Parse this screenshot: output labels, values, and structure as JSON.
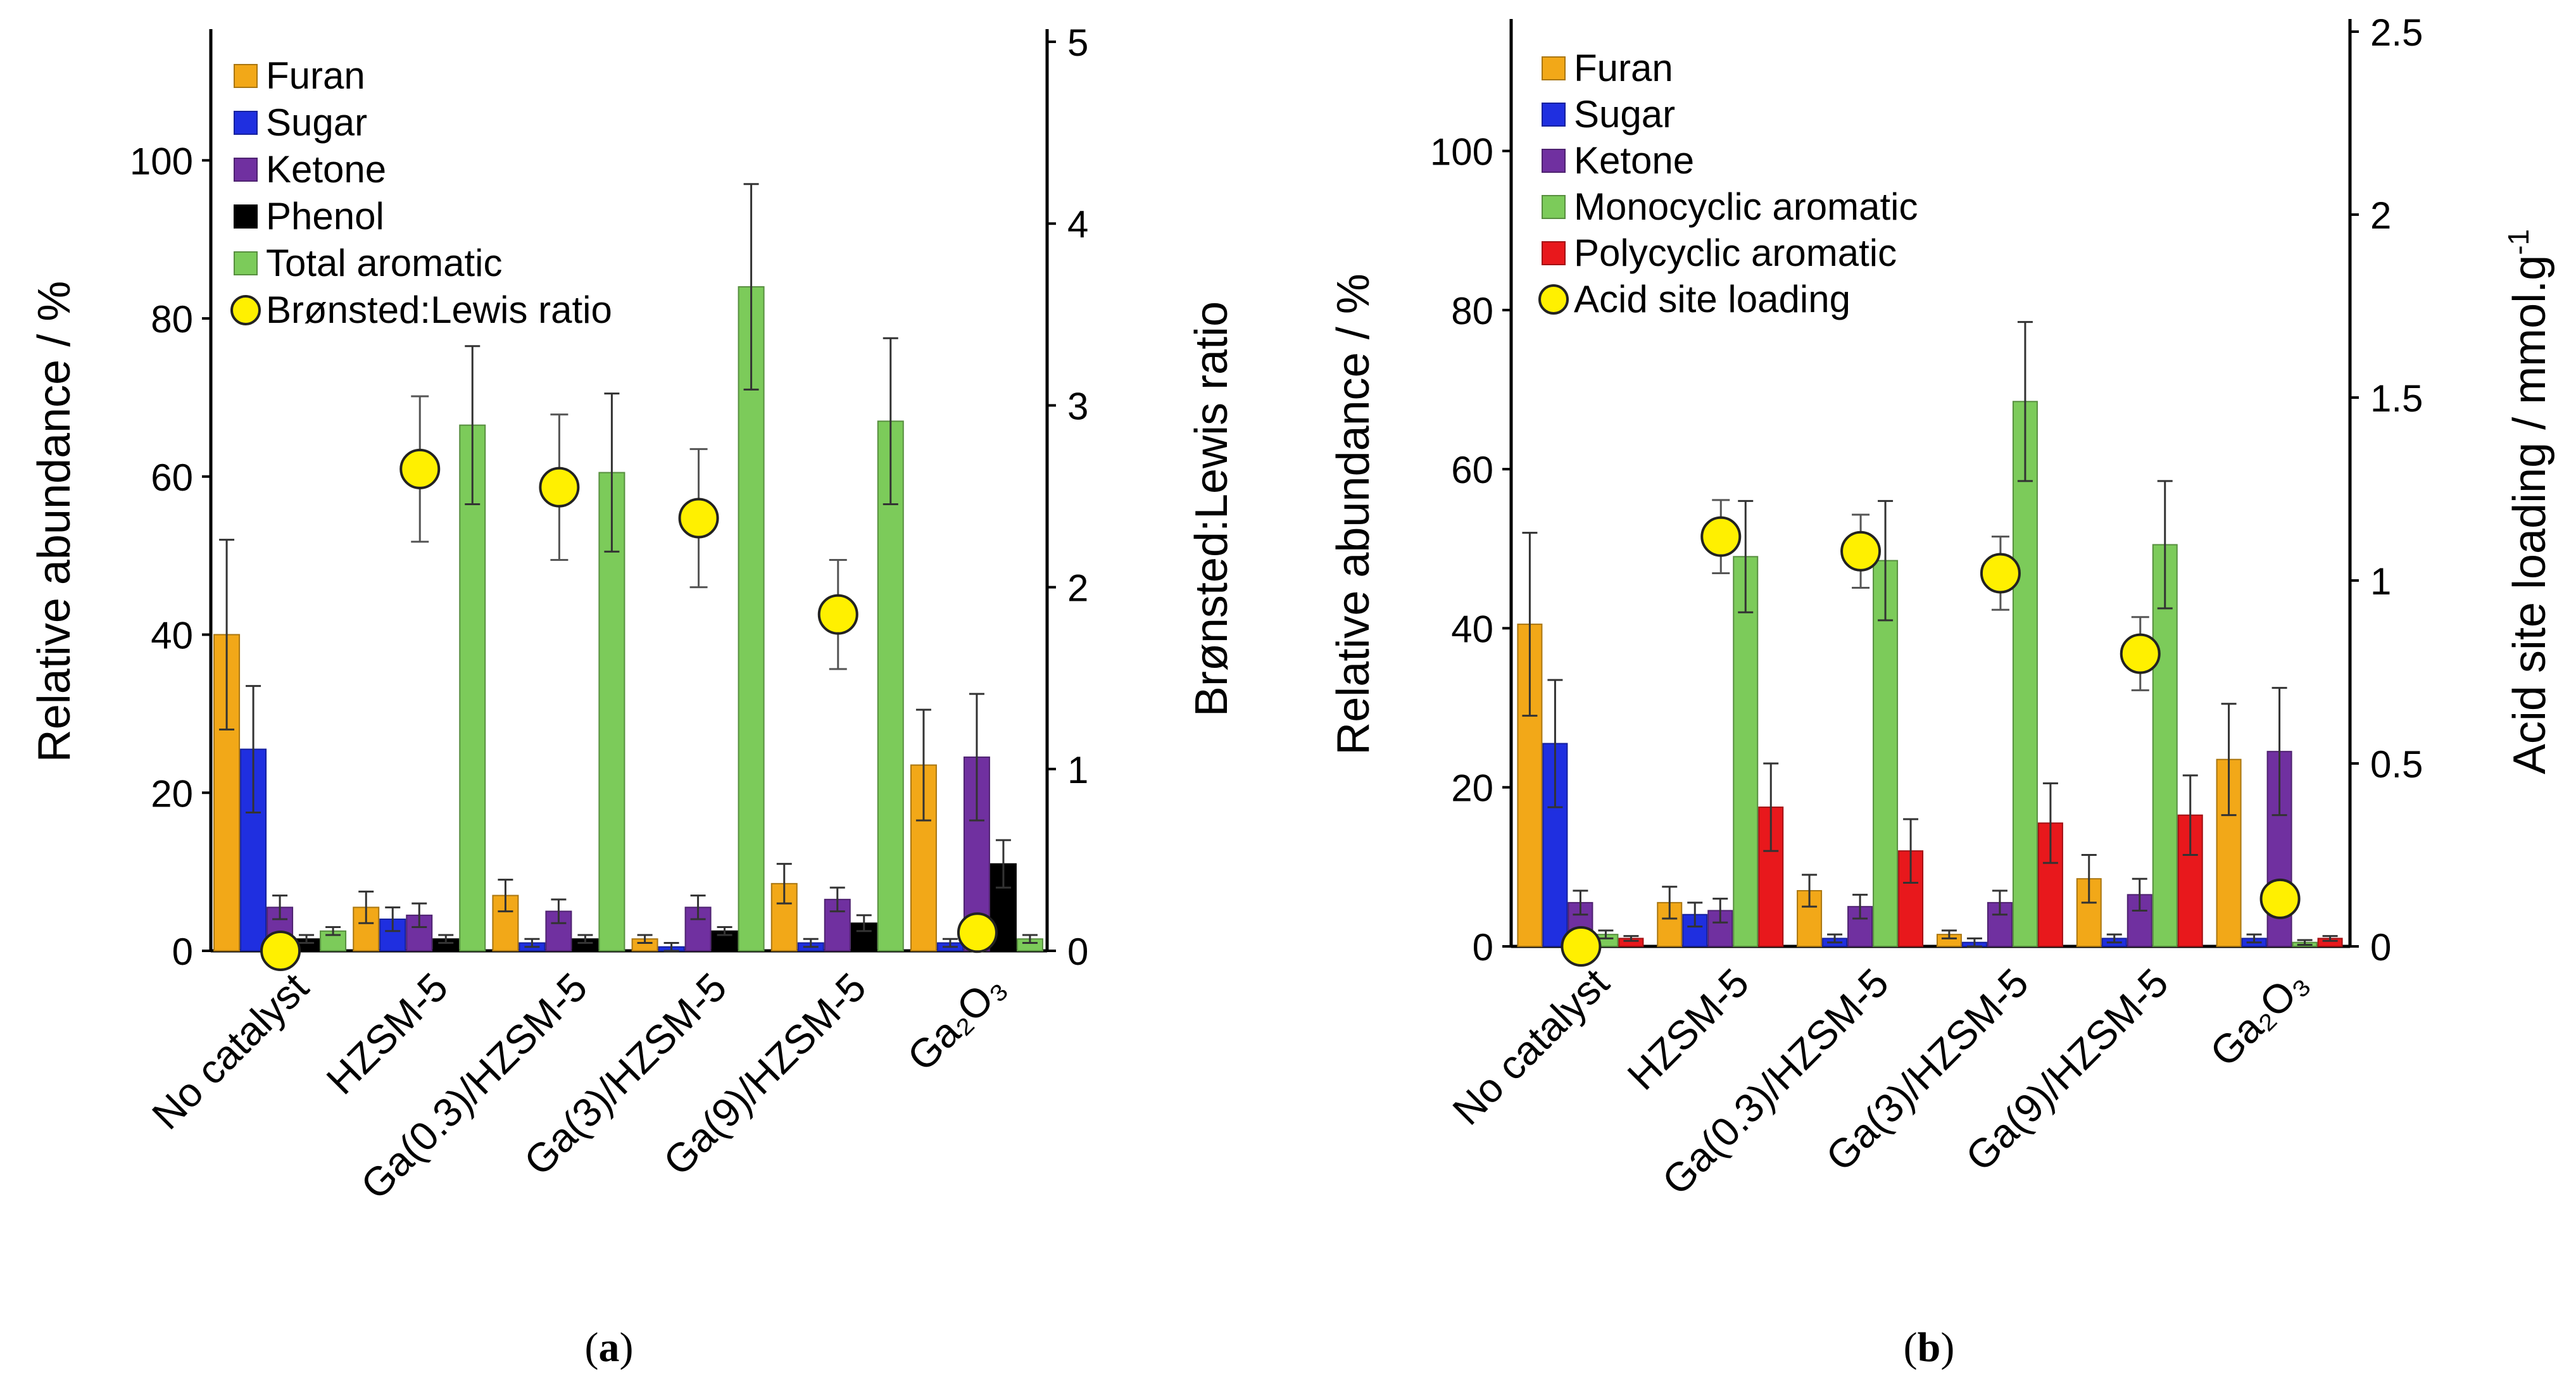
{
  "categories_display": [
    "No catalyst",
    "HZSM-5",
    "Ga(0.3)/HZSM-5",
    "Ga(3)/HZSM-5",
    "Ga(9)/HZSM-5",
    "Ga₂O₃"
  ],
  "panel_labels": {
    "a_open": "(",
    "a_letter": "a",
    "a_close": ")",
    "b_open": "(",
    "b_letter": "b",
    "b_close": ")"
  },
  "colors": {
    "furan": "#F2A818",
    "sugar": "#1F2FE0",
    "ketone": "#7030A0",
    "phenol": "#000000",
    "aromatic": "#7CCB5A",
    "polycyclic": "#E8181C",
    "marker": "#FFF000"
  },
  "chart_data": [
    {
      "type": "bar",
      "panel": "a",
      "categories": [
        "No catalyst",
        "HZSM-5",
        "Ga(0.3)/HZSM-5",
        "Ga(3)/HZSM-5",
        "Ga(9)/HZSM-5",
        "Ga2O3"
      ],
      "ylabel": "Relative abundance  / %",
      "ylim": [
        0,
        115
      ],
      "yticks": [
        0,
        20,
        40,
        60,
        80,
        100
      ],
      "y2label": "Brønsted:Lewis ratio",
      "y2lim": [
        0,
        5
      ],
      "y2ticks": [
        0,
        1,
        2,
        3,
        4,
        5
      ],
      "legend_position": "top-left",
      "series": [
        {
          "name": "Furan",
          "color": "#F2A818",
          "values": [
            40,
            5.5,
            7,
            1.5,
            8.5,
            23.5
          ],
          "errors": [
            12,
            2,
            2,
            0.5,
            2.5,
            7
          ]
        },
        {
          "name": "Sugar",
          "color": "#1F2FE0",
          "values": [
            25.5,
            4,
            1,
            0.5,
            1,
            1
          ],
          "errors": [
            8,
            1.5,
            0.5,
            0.5,
            0.5,
            0.5
          ]
        },
        {
          "name": "Ketone",
          "color": "#7030A0",
          "values": [
            5.5,
            4.5,
            5,
            5.5,
            6.5,
            24.5
          ],
          "errors": [
            1.5,
            1.5,
            1.5,
            1.5,
            1.5,
            8
          ]
        },
        {
          "name": "Phenol",
          "color": "#000000",
          "values": [
            1.5,
            1.5,
            1.5,
            2.5,
            3.5,
            11
          ],
          "errors": [
            0.5,
            0.5,
            0.5,
            0.5,
            1,
            3
          ]
        },
        {
          "name": "Total aromatic",
          "color": "#7CCB5A",
          "values": [
            2.5,
            66.5,
            60.5,
            84,
            67,
            1.5
          ],
          "errors": [
            0.5,
            10,
            10,
            13,
            10.5,
            0.5
          ]
        }
      ],
      "secondary_series": {
        "name": "Brønsted:Lewis ratio",
        "type": "scatter",
        "color": "#FFF000",
        "values": [
          0,
          2.65,
          2.55,
          2.38,
          1.85,
          0.1
        ],
        "errors": [
          0,
          0.4,
          0.4,
          0.38,
          0.3,
          0
        ]
      }
    },
    {
      "type": "bar",
      "panel": "b",
      "categories": [
        "No catalyst",
        "HZSM-5",
        "Ga(0.3)/HZSM-5",
        "Ga(3)/HZSM-5",
        "Ga(9)/HZSM-5",
        "Ga2O3"
      ],
      "ylabel": "Relative abundance  / %",
      "ylim": [
        0,
        115
      ],
      "yticks": [
        0,
        20,
        40,
        60,
        80,
        100
      ],
      "y2label": "Acid site loading / mmol.g",
      "y2label_superscript": "-1",
      "y2lim": [
        0,
        2.5
      ],
      "y2ticks": [
        0,
        0.5,
        1,
        1.5,
        2,
        2.5
      ],
      "y2ticklabels": [
        "0",
        "0.5",
        "1",
        "1.5",
        "2",
        "2.5"
      ],
      "legend_position": "top-left",
      "series": [
        {
          "name": "Furan",
          "color": "#F2A818",
          "values": [
            40.5,
            5.5,
            7,
            1.5,
            8.5,
            23.5
          ],
          "errors": [
            11.5,
            2,
            2,
            0.5,
            3,
            7
          ]
        },
        {
          "name": "Sugar",
          "color": "#1F2FE0",
          "values": [
            25.5,
            4,
            1,
            0.5,
            1,
            1
          ],
          "errors": [
            8,
            1.5,
            0.5,
            0.5,
            0.5,
            0.5
          ]
        },
        {
          "name": "Ketone",
          "color": "#7030A0",
          "values": [
            5.5,
            4.5,
            5,
            5.5,
            6.5,
            24.5
          ],
          "errors": [
            1.5,
            1.5,
            1.5,
            1.5,
            2,
            8
          ]
        },
        {
          "name": "Monocyclic aromatic",
          "color": "#7CCB5A",
          "values": [
            1.5,
            49,
            48.5,
            68.5,
            50.5,
            0.5
          ],
          "errors": [
            0.5,
            7,
            7.5,
            10,
            8,
            0.3
          ]
        },
        {
          "name": "Polycyclic aromatic",
          "color": "#E8181C",
          "values": [
            1,
            17.5,
            12,
            15.5,
            16.5,
            1
          ],
          "errors": [
            0.3,
            5.5,
            4,
            5,
            5,
            0.3
          ]
        }
      ],
      "secondary_series": {
        "name": "Acid site loading",
        "type": "scatter",
        "color": "#FFF000",
        "values": [
          0,
          1.12,
          1.08,
          1.02,
          0.8,
          0.13
        ],
        "errors": [
          0,
          0.1,
          0.1,
          0.1,
          0.1,
          0
        ]
      }
    }
  ]
}
